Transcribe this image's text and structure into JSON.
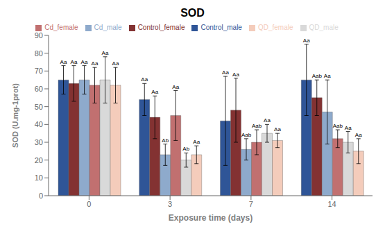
{
  "chart_data": {
    "type": "bar",
    "title": "SOD",
    "xlabel": "Exposure time (days)",
    "ylabel": "SOD (U.mg-1prot)",
    "categories": [
      "0",
      "3",
      "7",
      "14"
    ],
    "series": [
      {
        "name": "Control_male",
        "color": "#2F5597",
        "values": [
          65,
          54,
          42,
          65
        ],
        "errors": [
          8,
          9,
          25,
          20
        ],
        "annotations": [
          "Aa",
          "Aa",
          "Aa",
          "Aa"
        ]
      },
      {
        "name": "Control_female",
        "color": "#833232",
        "values": [
          63,
          44,
          48,
          55
        ],
        "errors": [
          10,
          12,
          18,
          10
        ],
        "annotations": [
          "Aa",
          "Aa",
          "Aa",
          "Aab"
        ]
      },
      {
        "name": "Cd_male",
        "color": "#8EAACC",
        "values": [
          65,
          23,
          26,
          47
        ],
        "errors": [
          8,
          6,
          6,
          18
        ],
        "annotations": [
          "Aa",
          "Ab",
          "Aab",
          "Aa"
        ]
      },
      {
        "name": "Cd_female",
        "color": "#C17070",
        "values": [
          62,
          45,
          30,
          32
        ],
        "errors": [
          10,
          14,
          7,
          5
        ],
        "annotations": [
          "Aa",
          "Aa",
          "Aab",
          "Aab"
        ]
      },
      {
        "name": "QD_male",
        "color": "#D9D9D9",
        "values": [
          65,
          20,
          35,
          30
        ],
        "errors": [
          13,
          4,
          5,
          6
        ],
        "annotations": [
          "Aa",
          "Ab",
          "Aa",
          "Aa"
        ]
      },
      {
        "name": "QD_female",
        "color": "#F4CCBB",
        "values": [
          62,
          23,
          31,
          25
        ],
        "errors": [
          10,
          5,
          4,
          7
        ],
        "annotations": [
          "Aa",
          "Aa",
          "Aa",
          "Aa"
        ]
      }
    ],
    "ylim": [
      0,
      90
    ],
    "yticks": [
      0,
      10,
      20,
      30,
      40,
      50,
      60,
      70,
      80,
      90
    ],
    "grid": false,
    "legend": "top"
  }
}
